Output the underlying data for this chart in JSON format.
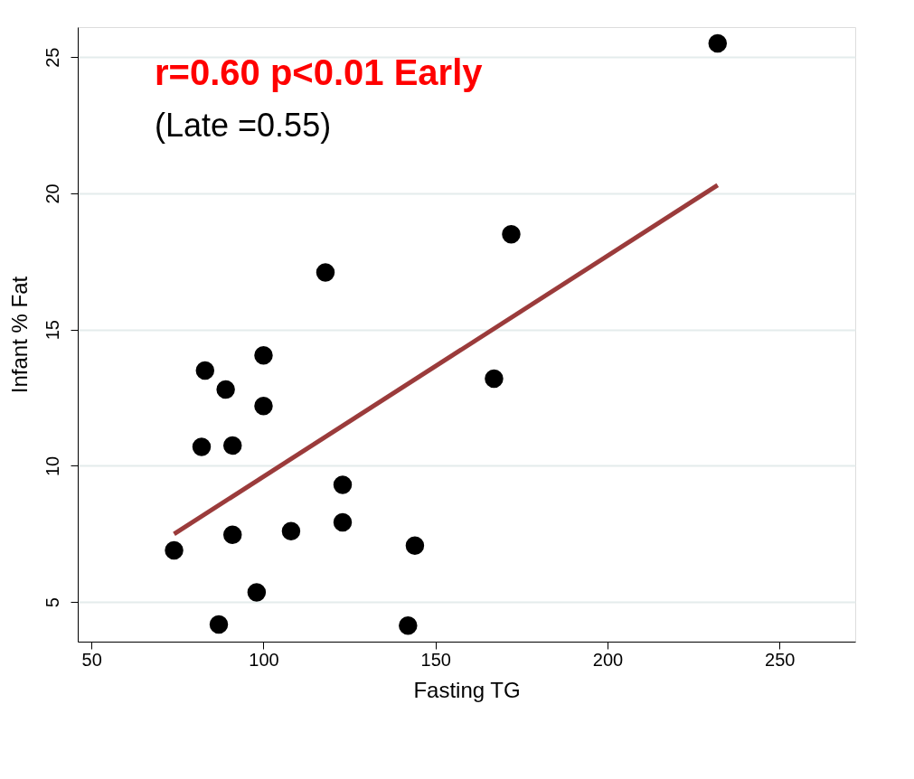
{
  "chart_data": {
    "type": "scatter",
    "xlabel": "Fasting TG",
    "ylabel": "Infant % Fat",
    "annotations": [
      "r=0.60 p<0.01 Early",
      "(Late =0.55)"
    ],
    "series": [
      {
        "marker": "circle",
        "color": "#000000",
        "x": [
          232,
          172,
          118,
          167,
          83,
          100,
          89,
          100,
          82,
          91,
          123,
          123,
          91,
          108,
          144,
          74,
          98,
          87,
          142
        ],
        "values": [
          25.5,
          18.5,
          17.1,
          13.2,
          13.5,
          14.05,
          12.8,
          12.2,
          10.7,
          10.75,
          9.3,
          7.93,
          7.47,
          7.6,
          7.07,
          6.9,
          5.36,
          4.18,
          4.14
        ]
      },
      {
        "type": "line",
        "marker": "none",
        "color": "#9b3b3b",
        "x": [
          74,
          232
        ],
        "values": [
          7.5,
          20.3
        ]
      }
    ],
    "xlim": [
      46,
      272
    ],
    "xticks": [
      50,
      100,
      150,
      200,
      250
    ],
    "ylim": [
      3.55,
      26.1
    ],
    "yticks": [
      5,
      10,
      15,
      20,
      25
    ],
    "grid": "y"
  }
}
